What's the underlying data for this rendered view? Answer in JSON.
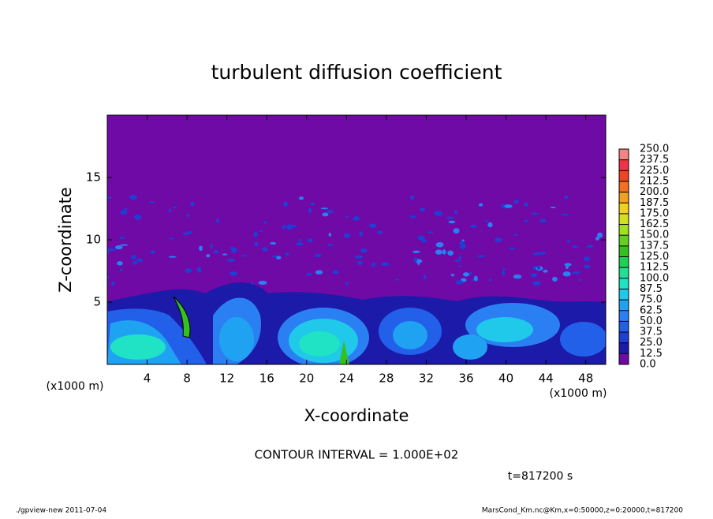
{
  "chart_data": {
    "type": "contour",
    "title": "turbulent diffusion coefficient",
    "xlabel": "X-coordinate",
    "ylabel": "Z-coordinate",
    "xunit": "(x1000 m)",
    "yunit": "(x1000 m)",
    "xlim": [
      0,
      50
    ],
    "xticks": [
      4,
      8,
      12,
      16,
      20,
      24,
      28,
      32,
      36,
      40,
      44,
      48
    ],
    "ylim": [
      0,
      20
    ],
    "yticks": [
      5,
      10,
      15
    ],
    "colorbar": {
      "levels": [
        {
          "value": 0,
          "label": "0.0"
        },
        {
          "value": 12.5,
          "label": "12.5"
        },
        {
          "value": 25,
          "label": "25.0"
        },
        {
          "value": 37.5,
          "label": "37.5"
        },
        {
          "value": 50,
          "label": "50.0"
        },
        {
          "value": 62.5,
          "label": "62.5"
        },
        {
          "value": 75,
          "label": "75.0"
        },
        {
          "value": 87.5,
          "label": "87.5"
        },
        {
          "value": 100,
          "label": "100.0"
        },
        {
          "value": 112.5,
          "label": "112.5"
        },
        {
          "value": 125,
          "label": "125.0"
        },
        {
          "value": 137.5,
          "label": "137.5"
        },
        {
          "value": 150,
          "label": "150.0"
        },
        {
          "value": 162.5,
          "label": "162.5"
        },
        {
          "value": 175,
          "label": "175.0"
        },
        {
          "value": 187.5,
          "label": "187.5"
        },
        {
          "value": 200,
          "label": "200.0"
        },
        {
          "value": 212.5,
          "label": "212.5"
        },
        {
          "value": 225,
          "label": "225.0"
        },
        {
          "value": 237.5,
          "label": "237.5"
        },
        {
          "value": 250,
          "label": "250.0"
        }
      ],
      "colors": [
        "#6f0aa6",
        "#1c1aa8",
        "#1f3fd4",
        "#2260ea",
        "#2a80f2",
        "#20a2f2",
        "#20c8ea",
        "#20e2c4",
        "#20e094",
        "#20d056",
        "#34c020",
        "#64d020",
        "#a2e020",
        "#d2e020",
        "#f2d020",
        "#f2a020",
        "#f27020",
        "#f24420",
        "#f03446",
        "#f28484"
      ]
    },
    "contour_interval": "CONTOUR INTERVAL = 1.000E+02",
    "time": "t=817200 s",
    "footer_left": "./gpview-new  2011-07-04",
    "footer_right": "MarsCond_Km.nc@Km,x=0:50000,z=0:20000,t=817200"
  }
}
